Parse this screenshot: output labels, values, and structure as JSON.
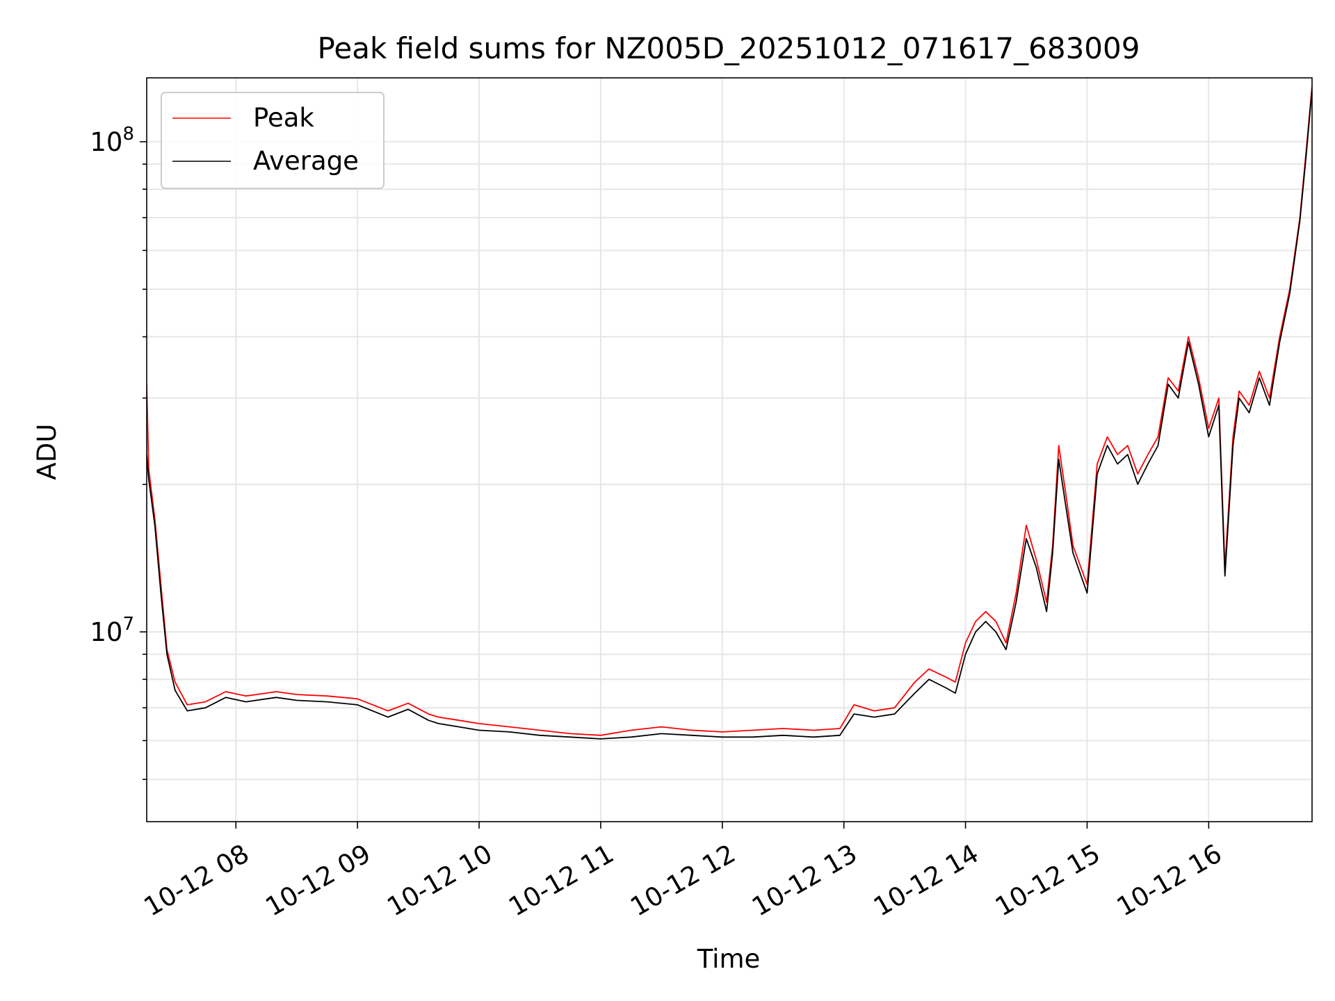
{
  "chart_data": {
    "type": "line",
    "title": "Peak field sums for NZ005D_20251012_071617_683009",
    "xlabel": "Time",
    "ylabel": "ADU",
    "yscale": "log",
    "ylim": [
      4100000,
      135000000
    ],
    "xlim": [
      "2025-10-12 07:16",
      "2025-10-12 16:51"
    ],
    "grid": true,
    "legend": {
      "placement": "top-left"
    },
    "x_ticks": [
      "2025-10-12 08:00",
      "2025-10-12 09:00",
      "2025-10-12 10:00",
      "2025-10-12 11:00",
      "2025-10-12 12:00",
      "2025-10-12 13:00",
      "2025-10-12 14:00",
      "2025-10-12 15:00",
      "2025-10-12 16:00"
    ],
    "x_tick_labels": [
      "10-12 08",
      "10-12 09",
      "10-12 10",
      "10-12 11",
      "10-12 12",
      "10-12 13",
      "10-12 14",
      "10-12 15",
      "10-12 16"
    ],
    "y_ticks": [
      10000000,
      100000000
    ],
    "y_tick_labels": [
      {
        "base": "10",
        "exp": "7"
      },
      {
        "base": "10",
        "exp": "8"
      }
    ],
    "series": [
      {
        "name": "Peak",
        "color": "#ff0000",
        "x": [
          "07:16",
          "07:17",
          "07:20",
          "07:23",
          "07:26",
          "07:30",
          "07:36",
          "07:45",
          "07:55",
          "08:05",
          "08:15",
          "08:20",
          "08:30",
          "08:45",
          "09:00",
          "09:15",
          "09:25",
          "09:35",
          "09:40",
          "09:50",
          "10:00",
          "10:15",
          "10:30",
          "10:45",
          "11:00",
          "11:15",
          "11:30",
          "11:45",
          "12:00",
          "12:15",
          "12:30",
          "12:45",
          "12:58",
          "13:05",
          "13:15",
          "13:25",
          "13:35",
          "13:42",
          "13:50",
          "13:55",
          "14:00",
          "14:05",
          "14:10",
          "14:15",
          "14:20",
          "14:25",
          "14:30",
          "14:35",
          "14:40",
          "14:43",
          "14:46",
          "14:50",
          "14:53",
          "15:00",
          "15:05",
          "15:10",
          "15:15",
          "15:20",
          "15:25",
          "15:30",
          "15:35",
          "15:40",
          "15:45",
          "15:50",
          "15:55",
          "16:00",
          "16:05",
          "16:08",
          "16:12",
          "16:15",
          "16:20",
          "16:25",
          "16:30",
          "16:35",
          "16:40",
          "16:45",
          "16:48",
          "16:51"
        ],
        "values": [
          32000000,
          21500000,
          17000000,
          12500000,
          9200000,
          7900000,
          7100000,
          7200000,
          7550000,
          7400000,
          7500000,
          7550000,
          7450000,
          7400000,
          7300000,
          6900000,
          7150000,
          6800000,
          6700000,
          6600000,
          6500000,
          6400000,
          6300000,
          6200000,
          6150000,
          6300000,
          6400000,
          6300000,
          6250000,
          6300000,
          6350000,
          6300000,
          6350000,
          7100000,
          6900000,
          7000000,
          7900000,
          8400000,
          8100000,
          7900000,
          9500000,
          10500000,
          11000000,
          10500000,
          9500000,
          12000000,
          16500000,
          14000000,
          11500000,
          15000000,
          24000000,
          18500000,
          15000000,
          12500000,
          22000000,
          25000000,
          23000000,
          24000000,
          21000000,
          23000000,
          25000000,
          33000000,
          31000000,
          40000000,
          33000000,
          26000000,
          30000000,
          13500000,
          25000000,
          31000000,
          29000000,
          34000000,
          30000000,
          40000000,
          50000000,
          70000000,
          95000000,
          130000000
        ]
      },
      {
        "name": "Average",
        "color": "#000000",
        "x": [
          "07:16",
          "07:17",
          "07:20",
          "07:23",
          "07:26",
          "07:30",
          "07:36",
          "07:45",
          "07:55",
          "08:05",
          "08:15",
          "08:20",
          "08:30",
          "08:45",
          "09:00",
          "09:15",
          "09:25",
          "09:35",
          "09:40",
          "09:50",
          "10:00",
          "10:15",
          "10:30",
          "10:45",
          "11:00",
          "11:15",
          "11:30",
          "11:45",
          "12:00",
          "12:15",
          "12:30",
          "12:45",
          "12:58",
          "13:05",
          "13:15",
          "13:25",
          "13:35",
          "13:42",
          "13:50",
          "13:55",
          "14:00",
          "14:05",
          "14:10",
          "14:15",
          "14:20",
          "14:25",
          "14:30",
          "14:35",
          "14:40",
          "14:43",
          "14:46",
          "14:50",
          "14:53",
          "15:00",
          "15:05",
          "15:10",
          "15:15",
          "15:20",
          "15:25",
          "15:30",
          "15:35",
          "15:40",
          "15:45",
          "15:50",
          "15:55",
          "16:00",
          "16:05",
          "16:08",
          "16:12",
          "16:15",
          "16:20",
          "16:25",
          "16:30",
          "16:35",
          "16:40",
          "16:45",
          "16:48",
          "16:51"
        ],
        "values": [
          23000000,
          20500000,
          16500000,
          12000000,
          9000000,
          7600000,
          6900000,
          7000000,
          7350000,
          7200000,
          7300000,
          7350000,
          7250000,
          7200000,
          7100000,
          6700000,
          6950000,
          6600000,
          6500000,
          6400000,
          6300000,
          6250000,
          6150000,
          6100000,
          6050000,
          6100000,
          6200000,
          6150000,
          6100000,
          6100000,
          6150000,
          6100000,
          6150000,
          6800000,
          6700000,
          6800000,
          7500000,
          8000000,
          7700000,
          7500000,
          9000000,
          10000000,
          10500000,
          10000000,
          9200000,
          11500000,
          15500000,
          13500000,
          11000000,
          14500000,
          22500000,
          17500000,
          14500000,
          12000000,
          21000000,
          24000000,
          22000000,
          23000000,
          20000000,
          22000000,
          24000000,
          32000000,
          30000000,
          39000000,
          32000000,
          25000000,
          29000000,
          13000000,
          24000000,
          30000000,
          28000000,
          33000000,
          29000000,
          39000000,
          49000000,
          69000000,
          93000000,
          128000000
        ]
      }
    ]
  }
}
